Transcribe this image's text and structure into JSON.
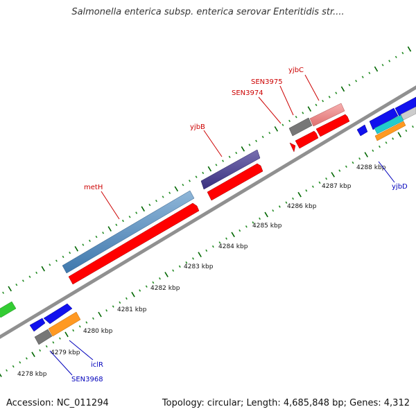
{
  "title": "Salmonella enterica subsp. enterica serovar Enteritidis str....",
  "footer": {
    "accession": "Accession: NC_011294",
    "summary": "Topology: circular; Length: 4,685,848 bp; Genes: 4,312"
  },
  "colors": {
    "backbone": "#909090",
    "forward_label": "#cc0000",
    "reverse_label": "#0000bb",
    "tick_minor": "#006600",
    "tick_major": "#006600"
  },
  "tick_labels": [
    "4278 kbp",
    "4279 kbp",
    "4280 kbp",
    "4281 kbp",
    "4282 kbp",
    "4283 kbp",
    "4284 kbp",
    "4285 kbp",
    "4286 kbp",
    "4287 kbp",
    "4288 kbp"
  ],
  "gene_labels": [
    {
      "text": "metH",
      "strand": "forward"
    },
    {
      "text": "yjbB",
      "strand": "forward"
    },
    {
      "text": "SEN3974",
      "strand": "forward"
    },
    {
      "text": "SEN3975",
      "strand": "forward"
    },
    {
      "text": "yjbC",
      "strand": "forward"
    },
    {
      "text": "yjbD",
      "strand": "reverse"
    },
    {
      "text": "iclR",
      "strand": "reverse"
    },
    {
      "text": "SEN3968",
      "strand": "reverse"
    }
  ]
}
